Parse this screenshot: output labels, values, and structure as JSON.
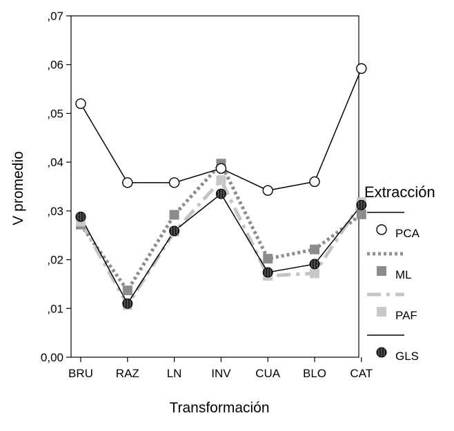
{
  "chart_data": {
    "type": "line",
    "xlabel": "Transformación",
    "ylabel": "V promedio",
    "categories": [
      "BRU",
      "RAZ",
      "LN",
      "INV",
      "CUA",
      "BLO",
      "CAT"
    ],
    "ylim": [
      0,
      0.07
    ],
    "yticks": [
      0,
      0.01,
      0.02,
      0.03,
      0.04,
      0.05,
      0.06,
      0.07
    ],
    "ytick_labels": [
      "0,00",
      ",01",
      ",02",
      ",03",
      ",04",
      ",05",
      ",06",
      ",07"
    ],
    "legend": {
      "title": "Extracción",
      "position": "right"
    },
    "series": [
      {
        "name": "PCA",
        "values": [
          0.052,
          0.0358,
          0.0358,
          0.0387,
          0.0342,
          0.036,
          0.0592
        ],
        "line": "solid",
        "line_color": "#000000",
        "marker": "circle-open",
        "marker_color": "#000000"
      },
      {
        "name": "ML",
        "values": [
          0.0272,
          0.0137,
          0.0292,
          0.0397,
          0.0202,
          0.0221,
          0.0293
        ],
        "line": "dotted",
        "line_color": "#8c8c8c",
        "marker": "square",
        "marker_color": "#8c8c8c"
      },
      {
        "name": "PAF",
        "values": [
          0.0278,
          0.0107,
          0.0257,
          0.0363,
          0.0167,
          0.0172,
          0.0318
        ],
        "line": "dashdot",
        "line_color": "#c4c4c4",
        "marker": "square",
        "marker_color": "#c8c8c8"
      },
      {
        "name": "GLS",
        "values": [
          0.0288,
          0.011,
          0.0259,
          0.0335,
          0.0174,
          0.0191,
          0.0312
        ],
        "line": "solid",
        "line_color": "#000000",
        "marker": "circle-filled",
        "marker_color": "#222222"
      }
    ]
  }
}
